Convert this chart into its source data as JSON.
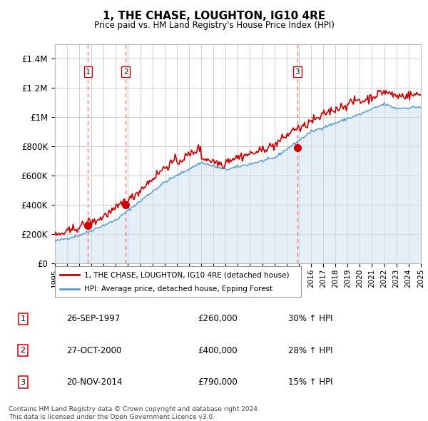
{
  "title": "1, THE CHASE, LOUGHTON, IG10 4RE",
  "subtitle": "Price paid vs. HM Land Registry's House Price Index (HPI)",
  "ylim": [
    0,
    1500000
  ],
  "yticks": [
    0,
    200000,
    400000,
    600000,
    800000,
    1000000,
    1200000,
    1400000
  ],
  "ytick_labels": [
    "£0",
    "£200K",
    "£400K",
    "£600K",
    "£800K",
    "£1M",
    "£1.2M",
    "£1.4M"
  ],
  "x_start_year": 1995,
  "x_end_year": 2025,
  "sale_years": [
    1997.73,
    2000.82,
    2014.89
  ],
  "sale_prices": [
    260000,
    400000,
    790000
  ],
  "sale_labels": [
    "1",
    "2",
    "3"
  ],
  "sale_details": [
    {
      "num": "1",
      "date": "26-SEP-1997",
      "price": "£260,000",
      "change": "30% ↑ HPI"
    },
    {
      "num": "2",
      "date": "27-OCT-2000",
      "price": "£400,000",
      "change": "28% ↑ HPI"
    },
    {
      "num": "3",
      "date": "20-NOV-2014",
      "price": "£790,000",
      "change": "15% ↑ HPI"
    }
  ],
  "red_line_color": "#cc0000",
  "blue_line_color": "#5599cc",
  "blue_fill_color": "#cce0f0",
  "grid_color": "#bbbbbb",
  "vline_color": "#ff5555",
  "background_color": "#ffffff",
  "legend_border_color": "#999999",
  "footer_text": "Contains HM Land Registry data © Crown copyright and database right 2024.\nThis data is licensed under the Open Government Licence v3.0.",
  "legend_line1": "1, THE CHASE, LOUGHTON, IG10 4RE (detached house)",
  "legend_line2": "HPI: Average price, detached house, Epping Forest"
}
